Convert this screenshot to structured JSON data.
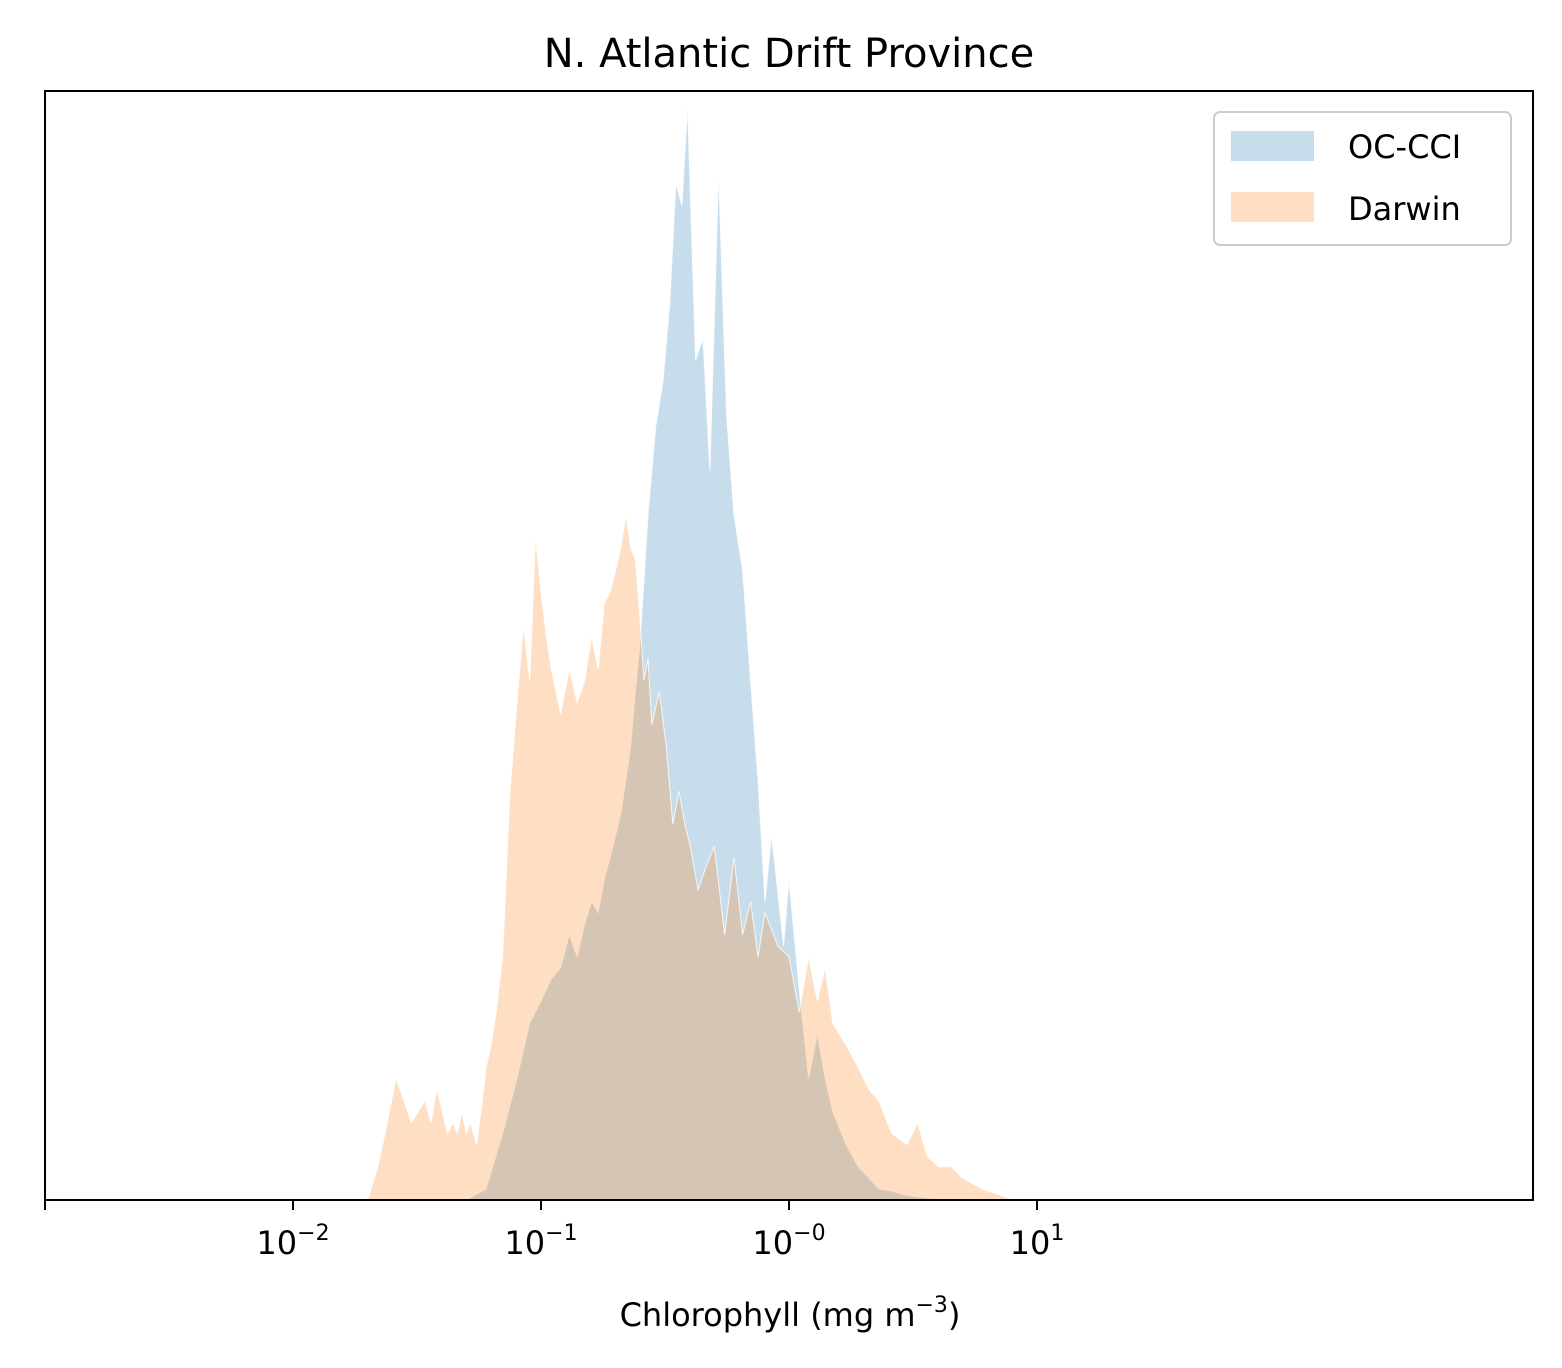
{
  "chart_data": {
    "type": "area",
    "title": "N. Atlantic Drift Province",
    "xlabel": "Chlorophyll  (mg m",
    "xlabel_sup": "−3",
    "xlabel_end": ")",
    "ylabel": "",
    "xscale": "log",
    "xlim": [
      0.001,
      1000
    ],
    "ylim": [
      0,
      1.0
    ],
    "grid": false,
    "legend_position": "top-right",
    "xticks": [
      {
        "value": 0.01,
        "base": "10",
        "exp": "−2"
      },
      {
        "value": 0.1,
        "base": "10",
        "exp": "−1"
      },
      {
        "value": 1,
        "base": "10",
        "exp": "−0"
      },
      {
        "value": 10,
        "base": "10",
        "exp": "1"
      }
    ],
    "series": [
      {
        "name": "OC-CCI",
        "color": "#1f77b4",
        "fill_opacity": 0.25,
        "x": [
          0.05,
          0.06,
          0.07,
          0.08,
          0.09,
          0.1,
          0.11,
          0.12,
          0.13,
          0.14,
          0.15,
          0.16,
          0.17,
          0.18,
          0.19,
          0.2,
          0.21,
          0.22,
          0.23,
          0.24,
          0.25,
          0.27,
          0.29,
          0.31,
          0.33,
          0.35,
          0.37,
          0.39,
          0.42,
          0.45,
          0.48,
          0.52,
          0.56,
          0.6,
          0.65,
          0.7,
          0.75,
          0.8,
          0.85,
          0.9,
          0.95,
          1.0,
          1.1,
          1.2,
          1.3,
          1.4,
          1.5,
          1.7,
          1.9,
          2.1,
          2.3,
          2.6,
          3.0,
          3.5,
          4.0,
          5.0
        ],
        "y": [
          0.0,
          0.01,
          0.06,
          0.11,
          0.16,
          0.18,
          0.2,
          0.21,
          0.24,
          0.22,
          0.25,
          0.27,
          0.26,
          0.29,
          0.31,
          0.33,
          0.35,
          0.38,
          0.41,
          0.46,
          0.5,
          0.62,
          0.7,
          0.74,
          0.81,
          0.92,
          0.9,
          0.99,
          0.76,
          0.78,
          0.66,
          0.93,
          0.71,
          0.62,
          0.57,
          0.47,
          0.38,
          0.27,
          0.33,
          0.28,
          0.23,
          0.29,
          0.19,
          0.11,
          0.15,
          0.11,
          0.08,
          0.05,
          0.03,
          0.02,
          0.01,
          0.008,
          0.004,
          0.002,
          0.001,
          0.0
        ]
      },
      {
        "name": "Darwin",
        "color": "#ff7f0e",
        "fill_opacity": 0.25,
        "x": [
          0.02,
          0.022,
          0.024,
          0.026,
          0.028,
          0.03,
          0.032,
          0.034,
          0.036,
          0.038,
          0.04,
          0.042,
          0.044,
          0.046,
          0.048,
          0.05,
          0.052,
          0.055,
          0.058,
          0.06,
          0.063,
          0.066,
          0.07,
          0.075,
          0.08,
          0.085,
          0.09,
          0.095,
          0.1,
          0.105,
          0.11,
          0.115,
          0.12,
          0.13,
          0.14,
          0.15,
          0.16,
          0.17,
          0.18,
          0.19,
          0.2,
          0.21,
          0.22,
          0.23,
          0.24,
          0.25,
          0.26,
          0.27,
          0.28,
          0.3,
          0.32,
          0.34,
          0.36,
          0.38,
          0.4,
          0.43,
          0.46,
          0.5,
          0.55,
          0.6,
          0.65,
          0.7,
          0.75,
          0.8,
          0.9,
          1.0,
          1.1,
          1.2,
          1.3,
          1.4,
          1.5,
          1.7,
          1.9,
          2.1,
          2.3,
          2.6,
          3.0,
          3.3,
          3.6,
          4.0,
          4.5,
          5.0,
          6.0,
          7.0,
          8.0
        ],
        "y": [
          0.0,
          0.03,
          0.07,
          0.11,
          0.09,
          0.07,
          0.08,
          0.09,
          0.07,
          0.1,
          0.08,
          0.06,
          0.07,
          0.06,
          0.08,
          0.06,
          0.07,
          0.05,
          0.09,
          0.12,
          0.14,
          0.17,
          0.22,
          0.37,
          0.45,
          0.52,
          0.47,
          0.6,
          0.55,
          0.51,
          0.48,
          0.46,
          0.44,
          0.48,
          0.45,
          0.47,
          0.51,
          0.48,
          0.54,
          0.55,
          0.57,
          0.59,
          0.62,
          0.59,
          0.58,
          0.53,
          0.47,
          0.49,
          0.43,
          0.46,
          0.41,
          0.34,
          0.37,
          0.34,
          0.32,
          0.28,
          0.3,
          0.32,
          0.24,
          0.31,
          0.24,
          0.27,
          0.22,
          0.26,
          0.23,
          0.22,
          0.17,
          0.22,
          0.18,
          0.21,
          0.16,
          0.14,
          0.12,
          0.1,
          0.09,
          0.06,
          0.05,
          0.07,
          0.04,
          0.03,
          0.03,
          0.02,
          0.01,
          0.005,
          0.0
        ]
      }
    ]
  }
}
